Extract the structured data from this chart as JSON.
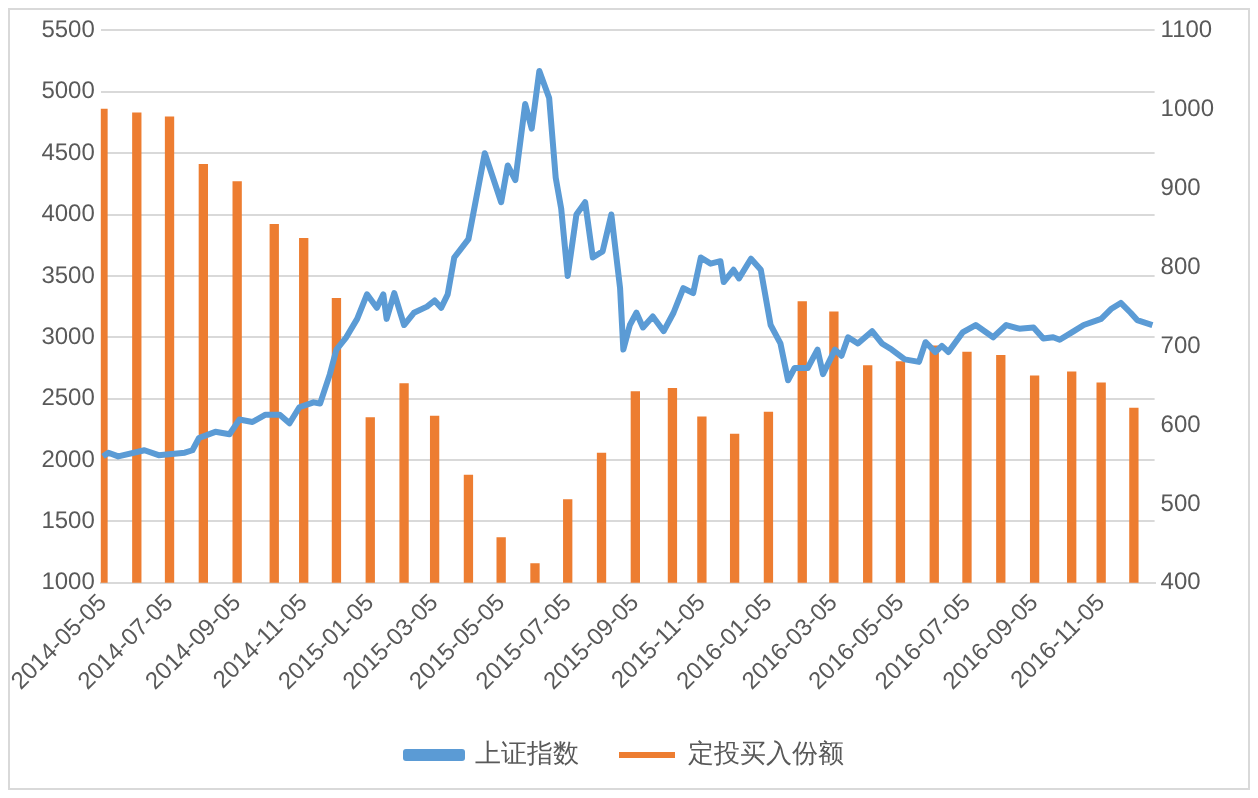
{
  "chart_data": {
    "type": "bar",
    "grid": "y",
    "legend": "bottom",
    "marker": "none",
    "xlim": [
      "2014-05-03",
      "2016-12-24"
    ],
    "xticks": [
      "2014-05-05",
      "2014-07-05",
      "2014-09-05",
      "2014-11-05",
      "2015-01-05",
      "2015-03-05",
      "2015-05-05",
      "2015-07-05",
      "2015-09-05",
      "2015-11-05",
      "2016-01-05",
      "2016-03-05",
      "2016-05-05",
      "2016-07-05",
      "2016-09-05",
      "2016-11-05"
    ],
    "ylim": [
      1000,
      5500
    ],
    "yticks": [
      1000,
      1500,
      2000,
      2500,
      3000,
      3500,
      4000,
      4500,
      5000,
      5500
    ],
    "y2lim": [
      400,
      1100
    ],
    "y2ticks": [
      400,
      500,
      600,
      700,
      800,
      900,
      1000,
      1100
    ],
    "series": [
      {
        "name": "上证指数",
        "type": "line",
        "color": "#5b9bd5",
        "x": [
          "2014-05-05",
          "2014-05-10",
          "2014-05-19",
          "2014-06-12",
          "2014-06-25",
          "2014-07-19",
          "2014-07-26",
          "2014-08-01",
          "2014-08-16",
          "2014-08-29",
          "2014-09-07",
          "2014-09-19",
          "2014-10-01",
          "2014-10-14",
          "2014-10-23",
          "2014-11-01",
          "2014-11-14",
          "2014-11-20",
          "2014-11-29",
          "2014-12-05",
          "2014-12-14",
          "2014-12-24",
          "2015-01-02",
          "2015-01-11",
          "2015-01-17",
          "2015-01-20",
          "2015-01-27",
          "2015-02-05",
          "2015-02-14",
          "2015-02-26",
          "2015-03-05",
          "2015-03-11",
          "2015-03-17",
          "2015-03-23",
          "2015-04-05",
          "2015-04-20",
          "2015-05-05",
          "2015-05-11",
          "2015-05-18",
          "2015-05-27",
          "2015-06-02",
          "2015-06-09",
          "2015-06-18",
          "2015-06-24",
          "2015-06-29",
          "2015-07-05",
          "2015-07-13",
          "2015-07-21",
          "2015-07-28",
          "2015-08-06",
          "2015-08-14",
          "2015-08-22",
          "2015-08-25",
          "2015-08-31",
          "2015-09-06",
          "2015-09-12",
          "2015-09-21",
          "2015-10-01",
          "2015-10-10",
          "2015-10-19",
          "2015-10-28",
          "2015-11-04",
          "2015-11-13",
          "2015-11-22",
          "2015-11-25",
          "2015-12-04",
          "2015-12-09",
          "2015-12-20",
          "2015-12-29",
          "2016-01-07",
          "2016-01-16",
          "2016-01-23",
          "2016-01-29",
          "2016-02-10",
          "2016-02-19",
          "2016-02-24",
          "2016-03-06",
          "2016-03-12",
          "2016-03-18",
          "2016-03-27",
          "2016-04-09",
          "2016-04-18",
          "2016-04-27",
          "2016-05-09",
          "2016-05-22",
          "2016-05-28",
          "2016-06-06",
          "2016-06-12",
          "2016-06-18",
          "2016-07-01",
          "2016-07-13",
          "2016-07-29",
          "2016-08-10",
          "2016-08-22",
          "2016-09-04",
          "2016-09-13",
          "2016-09-22",
          "2016-09-28",
          "2016-10-11",
          "2016-10-20",
          "2016-11-05",
          "2016-11-14",
          "2016-11-23",
          "2016-12-02",
          "2016-12-08",
          "2016-12-22"
        ],
        "values": [
          2030,
          2060,
          2030,
          2080,
          2040,
          2060,
          2080,
          2180,
          2230,
          2210,
          2330,
          2310,
          2370,
          2370,
          2300,
          2430,
          2470,
          2460,
          2700,
          2900,
          3000,
          3150,
          3350,
          3240,
          3350,
          3150,
          3360,
          3100,
          3200,
          3250,
          3300,
          3240,
          3350,
          3650,
          3800,
          4500,
          4100,
          4400,
          4280,
          4900,
          4700,
          5170,
          4950,
          4300,
          4050,
          3500,
          4000,
          4100,
          3650,
          3700,
          4000,
          3400,
          2900,
          3100,
          3200,
          3080,
          3170,
          3050,
          3200,
          3400,
          3360,
          3650,
          3600,
          3620,
          3450,
          3550,
          3480,
          3640,
          3550,
          3100,
          2950,
          2650,
          2750,
          2750,
          2900,
          2700,
          2900,
          2850,
          3000,
          2950,
          3050,
          2950,
          2900,
          2820,
          2800,
          2960,
          2880,
          2930,
          2880,
          3040,
          3100,
          3000,
          3100,
          3070,
          3080,
          2990,
          3000,
          2980,
          3050,
          3100,
          3150,
          3230,
          3280,
          3200,
          3140,
          3100
        ]
      },
      {
        "name": "定投买入份额",
        "axis": "y2",
        "color": "#ed7d31",
        "x": [
          "2014-05-05",
          "2014-06-05",
          "2014-07-05",
          "2014-08-05",
          "2014-09-05",
          "2014-10-09",
          "2014-11-05",
          "2014-12-05",
          "2015-01-05",
          "2015-02-05",
          "2015-03-05",
          "2015-04-05",
          "2015-05-05",
          "2015-06-05",
          "2015-07-05",
          "2015-08-05",
          "2015-09-05",
          "2015-10-09",
          "2015-11-05",
          "2015-12-05",
          "2016-01-05",
          "2016-02-05",
          "2016-03-05",
          "2016-04-05",
          "2016-05-05",
          "2016-06-05",
          "2016-07-05",
          "2016-08-05",
          "2016-09-05",
          "2016-10-09",
          "2016-11-05",
          "2016-12-05"
        ],
        "values": [
          1000,
          995,
          990,
          930,
          908,
          854,
          836,
          760,
          609,
          652,
          611,
          536,
          457,
          424,
          505,
          564,
          642,
          646,
          610,
          588,
          616,
          756,
          743,
          675,
          680,
          700,
          692,
          688,
          662,
          667,
          653,
          621
        ]
      }
    ]
  }
}
